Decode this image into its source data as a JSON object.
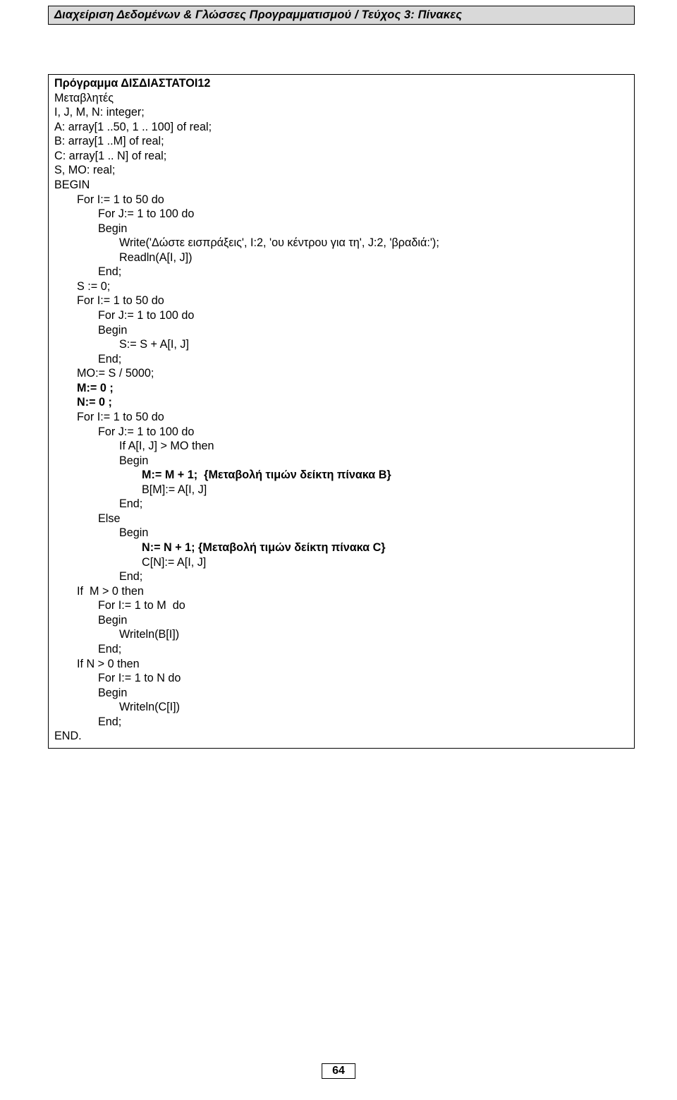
{
  "header": {
    "text": "Διαχείριση Δεδομένων & Γλώσσες Προγραμματισμού  /  Τεύχος 3: Πίνακες"
  },
  "code": {
    "line01": "Πρόγραμμα ΔΙΣΔΙΑΣΤΑΤΟΙ12",
    "line02": "Μεταβλητές",
    "line03": "I, J, M, N: integer;",
    "line04": "A: array[1 ..50, 1 .. 100] of real;",
    "line05": "B: array[1 ..M] of real;",
    "line06": "C: array[1 .. N] of real;",
    "line07": "S, MO: real;",
    "line08": "BEGIN",
    "line09": "For I:= 1 to 50 do",
    "line10": "For J:= 1 to 100 do",
    "line11": "Begin",
    "line12": "Write('Δώστε εισπράξεις', I:2, 'ου κέντρου για τη', J:2, 'βραδιά:');",
    "line13": "Readln(A[I, J])",
    "line14": "End;",
    "line15": "S := 0;",
    "line16": "For I:= 1 to 50 do",
    "line17": "For J:= 1 to 100 do",
    "line18": "Begin",
    "line19": "S:= S + A[I, J]",
    "line20": "End;",
    "line21": "MO:= S / 5000;",
    "line22": "M:= 0 ;",
    "line23": "N:= 0 ;",
    "line24": "For I:= 1 to 50 do",
    "line25": "For J:= 1 to 100 do",
    "line26": "If A[I, J] > MO then",
    "line27": "Begin",
    "line28a": "M:= M + 1;  {Μεταβολή τιμών δείκτη πίνακα B}",
    "line29": "B[M]:= A[I, J]",
    "line30": "End;",
    "line31": "Else",
    "line32": "Begin",
    "line33a": "N:= N + 1; {Μεταβολή τιμών δείκτη πίνακα C}",
    "line34": "C[N]:= A[I, J]",
    "line35": "End;",
    "line36": "If  M > 0 then",
    "line37": "For I:= 1 to M  do",
    "line38": "Begin",
    "line39": "Writeln(B[I])",
    "line40": "End;",
    "line41": "If N > 0 then",
    "line42": "For I:= 1 to N do",
    "line43": "Begin",
    "line44": "Writeln(C[I])",
    "line45": "End;",
    "line46": "END."
  },
  "pageNumber": "64"
}
